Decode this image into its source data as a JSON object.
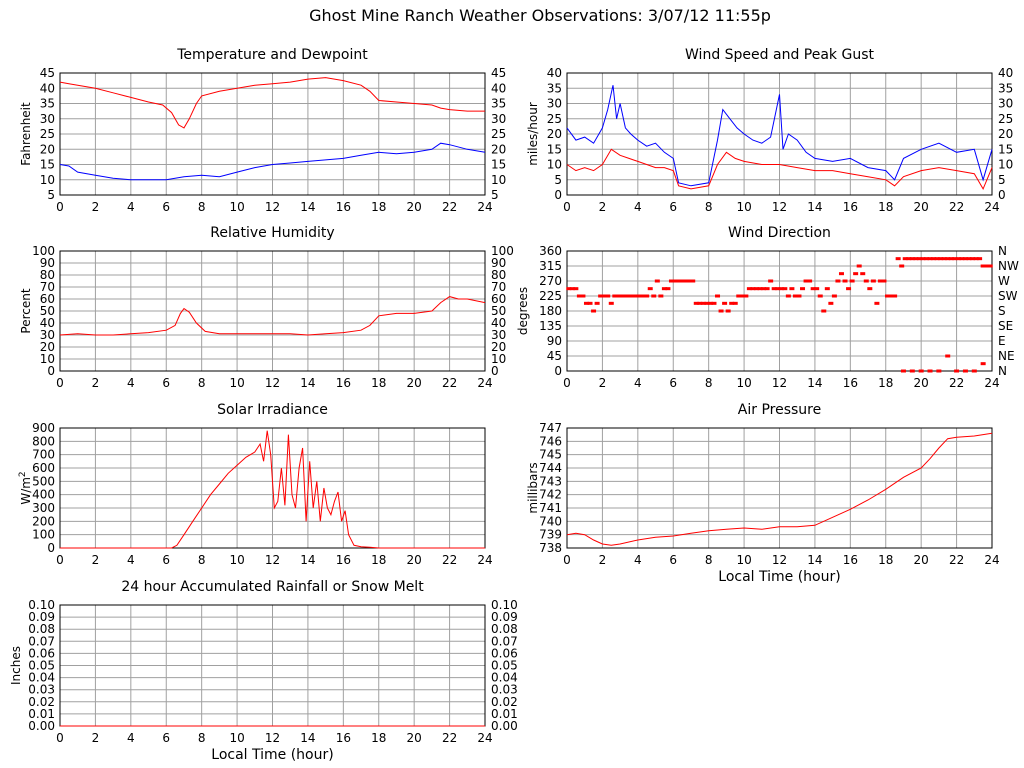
{
  "page_title": "Ghost Mine Ranch Weather Observations: 3/07/12 11:55p",
  "colors": {
    "red": "#ff0000",
    "blue": "#0000ff",
    "grid": "#a0a0a0",
    "axis": "#000000"
  },
  "chart_data": [
    {
      "id": "temp",
      "type": "line",
      "title": "Temperature and Dewpoint",
      "xlabel": "",
      "ylabel": "Fahrenheit",
      "xlim": [
        0,
        24
      ],
      "ylim": [
        5,
        45
      ],
      "xticks": [
        0,
        2,
        4,
        6,
        8,
        10,
        12,
        14,
        16,
        18,
        20,
        22,
        24
      ],
      "yticks": [
        5,
        10,
        15,
        20,
        25,
        30,
        35,
        40,
        45
      ],
      "right_ticks": true,
      "series": [
        {
          "color": "#ff0000",
          "mode": "line",
          "x": [
            0,
            0.5,
            1,
            2,
            3,
            4,
            5,
            5.8,
            6.3,
            6.7,
            7.0,
            7.3,
            7.7,
            8.0,
            9,
            10,
            11,
            12,
            13,
            14,
            15,
            16,
            17,
            17.5,
            18,
            19,
            20,
            21,
            21.5,
            22,
            23,
            24
          ],
          "y": [
            42,
            41.5,
            41,
            40,
            38.5,
            37,
            35.5,
            34.5,
            32,
            28,
            27,
            30,
            35,
            37.5,
            39,
            40,
            41,
            41.5,
            42,
            43,
            43.5,
            42.5,
            41,
            39,
            36,
            35.5,
            35,
            34.5,
            33.5,
            33,
            32.5,
            32.5
          ]
        },
        {
          "color": "#0000ff",
          "mode": "line",
          "x": [
            0,
            0.5,
            1,
            2,
            3,
            4,
            5,
            6,
            7,
            8,
            9,
            10,
            11,
            12,
            13,
            14,
            15,
            16,
            17,
            18,
            19,
            20,
            21,
            21.5,
            22,
            23,
            24
          ],
          "y": [
            15,
            14.5,
            12.5,
            11.5,
            10.5,
            10,
            10,
            10,
            11,
            11.5,
            11,
            12.5,
            14,
            15,
            15.5,
            16,
            16.5,
            17,
            18,
            19,
            18.5,
            19,
            20,
            22,
            21.5,
            20,
            19
          ]
        }
      ]
    },
    {
      "id": "wind",
      "type": "line",
      "title": "Wind Speed and Peak Gust",
      "xlabel": "",
      "ylabel": "miles/hour",
      "xlim": [
        0,
        24
      ],
      "ylim": [
        0,
        40
      ],
      "xticks": [
        0,
        2,
        4,
        6,
        8,
        10,
        12,
        14,
        16,
        18,
        20,
        22,
        24
      ],
      "yticks": [
        0,
        5,
        10,
        15,
        20,
        25,
        30,
        35,
        40
      ],
      "right_ticks": true,
      "series": [
        {
          "color": "#0000ff",
          "mode": "line",
          "x": [
            0,
            0.5,
            1,
            1.5,
            2,
            2.3,
            2.6,
            2.8,
            3.0,
            3.3,
            3.6,
            4,
            4.5,
            5,
            5.5,
            6.0,
            6.3,
            7,
            8,
            8.5,
            8.8,
            9.2,
            9.6,
            10,
            10.5,
            11,
            11.5,
            12.0,
            12.2,
            12.5,
            13,
            13.5,
            14,
            15,
            16,
            17,
            18,
            18.5,
            19,
            20,
            21,
            22,
            23,
            23.5,
            24
          ],
          "y": [
            22,
            18,
            19,
            17,
            22,
            28,
            36,
            25,
            30,
            22,
            20,
            18,
            16,
            17,
            14,
            12,
            4,
            3,
            4,
            18,
            28,
            25,
            22,
            20,
            18,
            17,
            19,
            33,
            15,
            20,
            18,
            14,
            12,
            11,
            12,
            9,
            8,
            5,
            12,
            15,
            17,
            14,
            15,
            5,
            15
          ]
        },
        {
          "color": "#ff0000",
          "mode": "line",
          "x": [
            0,
            0.5,
            1,
            1.5,
            2,
            2.5,
            3,
            3.5,
            4,
            4.5,
            5,
            5.5,
            6,
            6.3,
            7,
            8,
            8.5,
            9,
            9.5,
            10,
            11,
            12,
            13,
            14,
            15,
            16,
            17,
            18,
            18.5,
            19,
            20,
            21,
            22,
            23,
            23.5,
            24
          ],
          "y": [
            10,
            8,
            9,
            8,
            10,
            15,
            13,
            12,
            11,
            10,
            9,
            9,
            8,
            3,
            2,
            3,
            10,
            14,
            12,
            11,
            10,
            10,
            9,
            8,
            8,
            7,
            6,
            5,
            3,
            6,
            8,
            9,
            8,
            7,
            2,
            9
          ]
        }
      ]
    },
    {
      "id": "rh",
      "type": "line",
      "title": "Relative Humidity",
      "xlabel": "",
      "ylabel": "Percent",
      "xlim": [
        0,
        24
      ],
      "ylim": [
        0,
        100
      ],
      "xticks": [
        0,
        2,
        4,
        6,
        8,
        10,
        12,
        14,
        16,
        18,
        20,
        22,
        24
      ],
      "yticks": [
        0,
        10,
        20,
        30,
        40,
        50,
        60,
        70,
        80,
        90,
        100
      ],
      "right_ticks": true,
      "series": [
        {
          "color": "#ff0000",
          "mode": "line",
          "x": [
            0,
            1,
            2,
            3,
            4,
            5,
            6,
            6.5,
            6.8,
            7.0,
            7.3,
            7.7,
            8.2,
            9,
            10,
            11,
            12,
            13,
            14,
            15,
            16,
            17,
            17.5,
            18,
            19,
            20,
            21,
            21.5,
            22,
            22.5,
            23,
            24
          ],
          "y": [
            30,
            31,
            30,
            30,
            31,
            32,
            34,
            38,
            48,
            52,
            49,
            40,
            33,
            31,
            31,
            31,
            31,
            31,
            30,
            31,
            32,
            34,
            38,
            46,
            48,
            48,
            50,
            57,
            62,
            60,
            60,
            57
          ]
        }
      ]
    },
    {
      "id": "wdir",
      "type": "scatter",
      "title": "Wind Direction",
      "xlabel": "",
      "ylabel": "degrees",
      "xlim": [
        0,
        24
      ],
      "ylim": [
        0,
        360
      ],
      "xticks": [
        0,
        2,
        4,
        6,
        8,
        10,
        12,
        14,
        16,
        18,
        20,
        22,
        24
      ],
      "yticks": [
        0,
        45,
        90,
        135,
        180,
        225,
        270,
        315,
        360
      ],
      "right_labels": [
        "N",
        "NE",
        "E",
        "SE",
        "S",
        "SW",
        "W",
        "NW",
        "N"
      ],
      "series": [
        {
          "color": "#ff0000",
          "mode": "dots",
          "x": [
            0.1,
            0.3,
            0.5,
            0.7,
            0.9,
            1.1,
            1.3,
            1.5,
            1.7,
            1.9,
            2.1,
            2.3,
            2.5,
            2.7,
            2.9,
            3.1,
            3.3,
            3.5,
            3.7,
            3.9,
            4.1,
            4.3,
            4.5,
            4.7,
            4.9,
            5.1,
            5.3,
            5.5,
            5.7,
            5.9,
            6.1,
            6.3,
            6.5,
            6.7,
            6.9,
            7.1,
            7.3,
            7.5,
            7.7,
            7.9,
            8.1,
            8.3,
            8.5,
            8.7,
            8.9,
            9.1,
            9.3,
            9.5,
            9.7,
            9.9,
            10.1,
            10.3,
            10.5,
            10.7,
            10.9,
            11.1,
            11.3,
            11.5,
            11.7,
            11.9,
            12.1,
            12.3,
            12.5,
            12.7,
            12.9,
            13.1,
            13.3,
            13.5,
            13.7,
            13.9,
            14.1,
            14.3,
            14.5,
            14.7,
            14.9,
            15.1,
            15.3,
            15.5,
            15.7,
            15.9,
            16.1,
            16.3,
            16.5,
            16.7,
            16.9,
            17.1,
            17.3,
            17.5,
            17.7,
            17.9,
            18.1,
            18.3,
            18.5,
            18.7,
            18.9,
            19.1,
            19.3,
            19.5,
            19.7,
            19.9,
            20.1,
            20.3,
            20.5,
            20.7,
            20.9,
            21.1,
            21.3,
            21.5,
            21.7,
            21.9,
            22.1,
            22.3,
            22.5,
            22.7,
            22.9,
            23.1,
            23.3,
            23.5,
            23.7,
            23.9,
            19.0,
            19.5,
            20.0,
            20.5,
            21.0,
            21.5,
            22.0,
            22.5,
            23.0,
            23.5
          ],
          "y": [
            247,
            247,
            247,
            225,
            225,
            203,
            203,
            180,
            203,
            225,
            225,
            225,
            203,
            225,
            225,
            225,
            225,
            225,
            225,
            225,
            225,
            225,
            225,
            247,
            225,
            270,
            225,
            247,
            247,
            270,
            270,
            270,
            270,
            270,
            270,
            270,
            203,
            203,
            203,
            203,
            203,
            203,
            225,
            180,
            203,
            180,
            203,
            203,
            225,
            225,
            225,
            247,
            247,
            247,
            247,
            247,
            247,
            270,
            247,
            247,
            247,
            247,
            225,
            247,
            225,
            225,
            247,
            270,
            270,
            247,
            247,
            225,
            180,
            247,
            203,
            225,
            270,
            292,
            270,
            247,
            270,
            292,
            315,
            292,
            270,
            247,
            270,
            203,
            270,
            270,
            225,
            225,
            225,
            337,
            315,
            337,
            337,
            337,
            337,
            337,
            337,
            337,
            337,
            337,
            337,
            337,
            337,
            337,
            337,
            337,
            337,
            337,
            337,
            337,
            337,
            337,
            337,
            315,
            315,
            315,
            0,
            0,
            0,
            0,
            0,
            45,
            0,
            0,
            0,
            22
          ]
        }
      ]
    },
    {
      "id": "solar",
      "type": "line",
      "title": "Solar Irradiance",
      "xlabel": "",
      "ylabel": "W/m2",
      "xlim": [
        0,
        24
      ],
      "ylim": [
        0,
        900
      ],
      "xticks": [
        0,
        2,
        4,
        6,
        8,
        10,
        12,
        14,
        16,
        18,
        20,
        22,
        24
      ],
      "yticks": [
        0,
        100,
        200,
        300,
        400,
        500,
        600,
        700,
        800,
        900
      ],
      "series": [
        {
          "color": "#ff0000",
          "mode": "line",
          "x": [
            0,
            6.3,
            6.6,
            7,
            7.5,
            8,
            8.5,
            9,
            9.5,
            10,
            10.5,
            11,
            11.3,
            11.5,
            11.7,
            11.9,
            12.1,
            12.3,
            12.5,
            12.7,
            12.9,
            13.1,
            13.3,
            13.5,
            13.7,
            13.9,
            14.1,
            14.3,
            14.5,
            14.7,
            14.9,
            15.1,
            15.3,
            15.5,
            15.7,
            15.9,
            16.1,
            16.3,
            16.6,
            17,
            17.5,
            18,
            24
          ],
          "y": [
            0,
            0,
            20,
            100,
            200,
            300,
            400,
            480,
            560,
            620,
            680,
            720,
            780,
            650,
            880,
            700,
            300,
            350,
            600,
            320,
            850,
            400,
            300,
            600,
            750,
            200,
            650,
            300,
            500,
            200,
            450,
            300,
            250,
            350,
            420,
            200,
            280,
            100,
            20,
            10,
            5,
            0,
            0
          ]
        }
      ]
    },
    {
      "id": "press",
      "type": "line",
      "title": "Air Pressure",
      "xlabel": "Local Time (hour)",
      "ylabel": "millibars",
      "xlim": [
        0,
        24
      ],
      "ylim": [
        738,
        747
      ],
      "xticks": [
        0,
        2,
        4,
        6,
        8,
        10,
        12,
        14,
        16,
        18,
        20,
        22,
        24
      ],
      "yticks": [
        738,
        739,
        740,
        741,
        742,
        743,
        744,
        745,
        746,
        747
      ],
      "series": [
        {
          "color": "#ff0000",
          "mode": "line",
          "x": [
            0,
            0.5,
            1,
            1.5,
            2,
            2.5,
            3,
            4,
            5,
            6,
            7,
            8,
            9,
            10,
            11,
            12,
            13,
            14,
            15,
            16,
            17,
            18,
            19,
            20,
            20.5,
            21,
            21.5,
            22,
            23,
            24
          ],
          "y": [
            739.0,
            739.1,
            739.0,
            738.6,
            738.3,
            738.2,
            738.3,
            738.6,
            738.8,
            738.9,
            739.1,
            739.3,
            739.4,
            739.5,
            739.4,
            739.6,
            739.6,
            739.7,
            740.3,
            740.9,
            741.6,
            742.4,
            743.3,
            744.0,
            744.7,
            745.5,
            746.2,
            746.3,
            746.4,
            746.6
          ]
        }
      ]
    },
    {
      "id": "rain",
      "type": "line",
      "title": "24 hour Accumulated Rainfall or Snow Melt",
      "xlabel": "Local Time (hour)",
      "ylabel": "Inches",
      "xlim": [
        0,
        24
      ],
      "ylim": [
        0,
        0.1
      ],
      "xticks": [
        0,
        2,
        4,
        6,
        8,
        10,
        12,
        14,
        16,
        18,
        20,
        22,
        24
      ],
      "yticks": [
        "0.00",
        "0.01",
        "0.02",
        "0.03",
        "0.04",
        "0.05",
        "0.06",
        "0.07",
        "0.08",
        "0.09",
        "0.10"
      ],
      "right_ticks": true,
      "series": [
        {
          "color": "#ff0000",
          "mode": "line",
          "x": [
            0,
            24
          ],
          "y": [
            0,
            0
          ]
        }
      ]
    }
  ]
}
